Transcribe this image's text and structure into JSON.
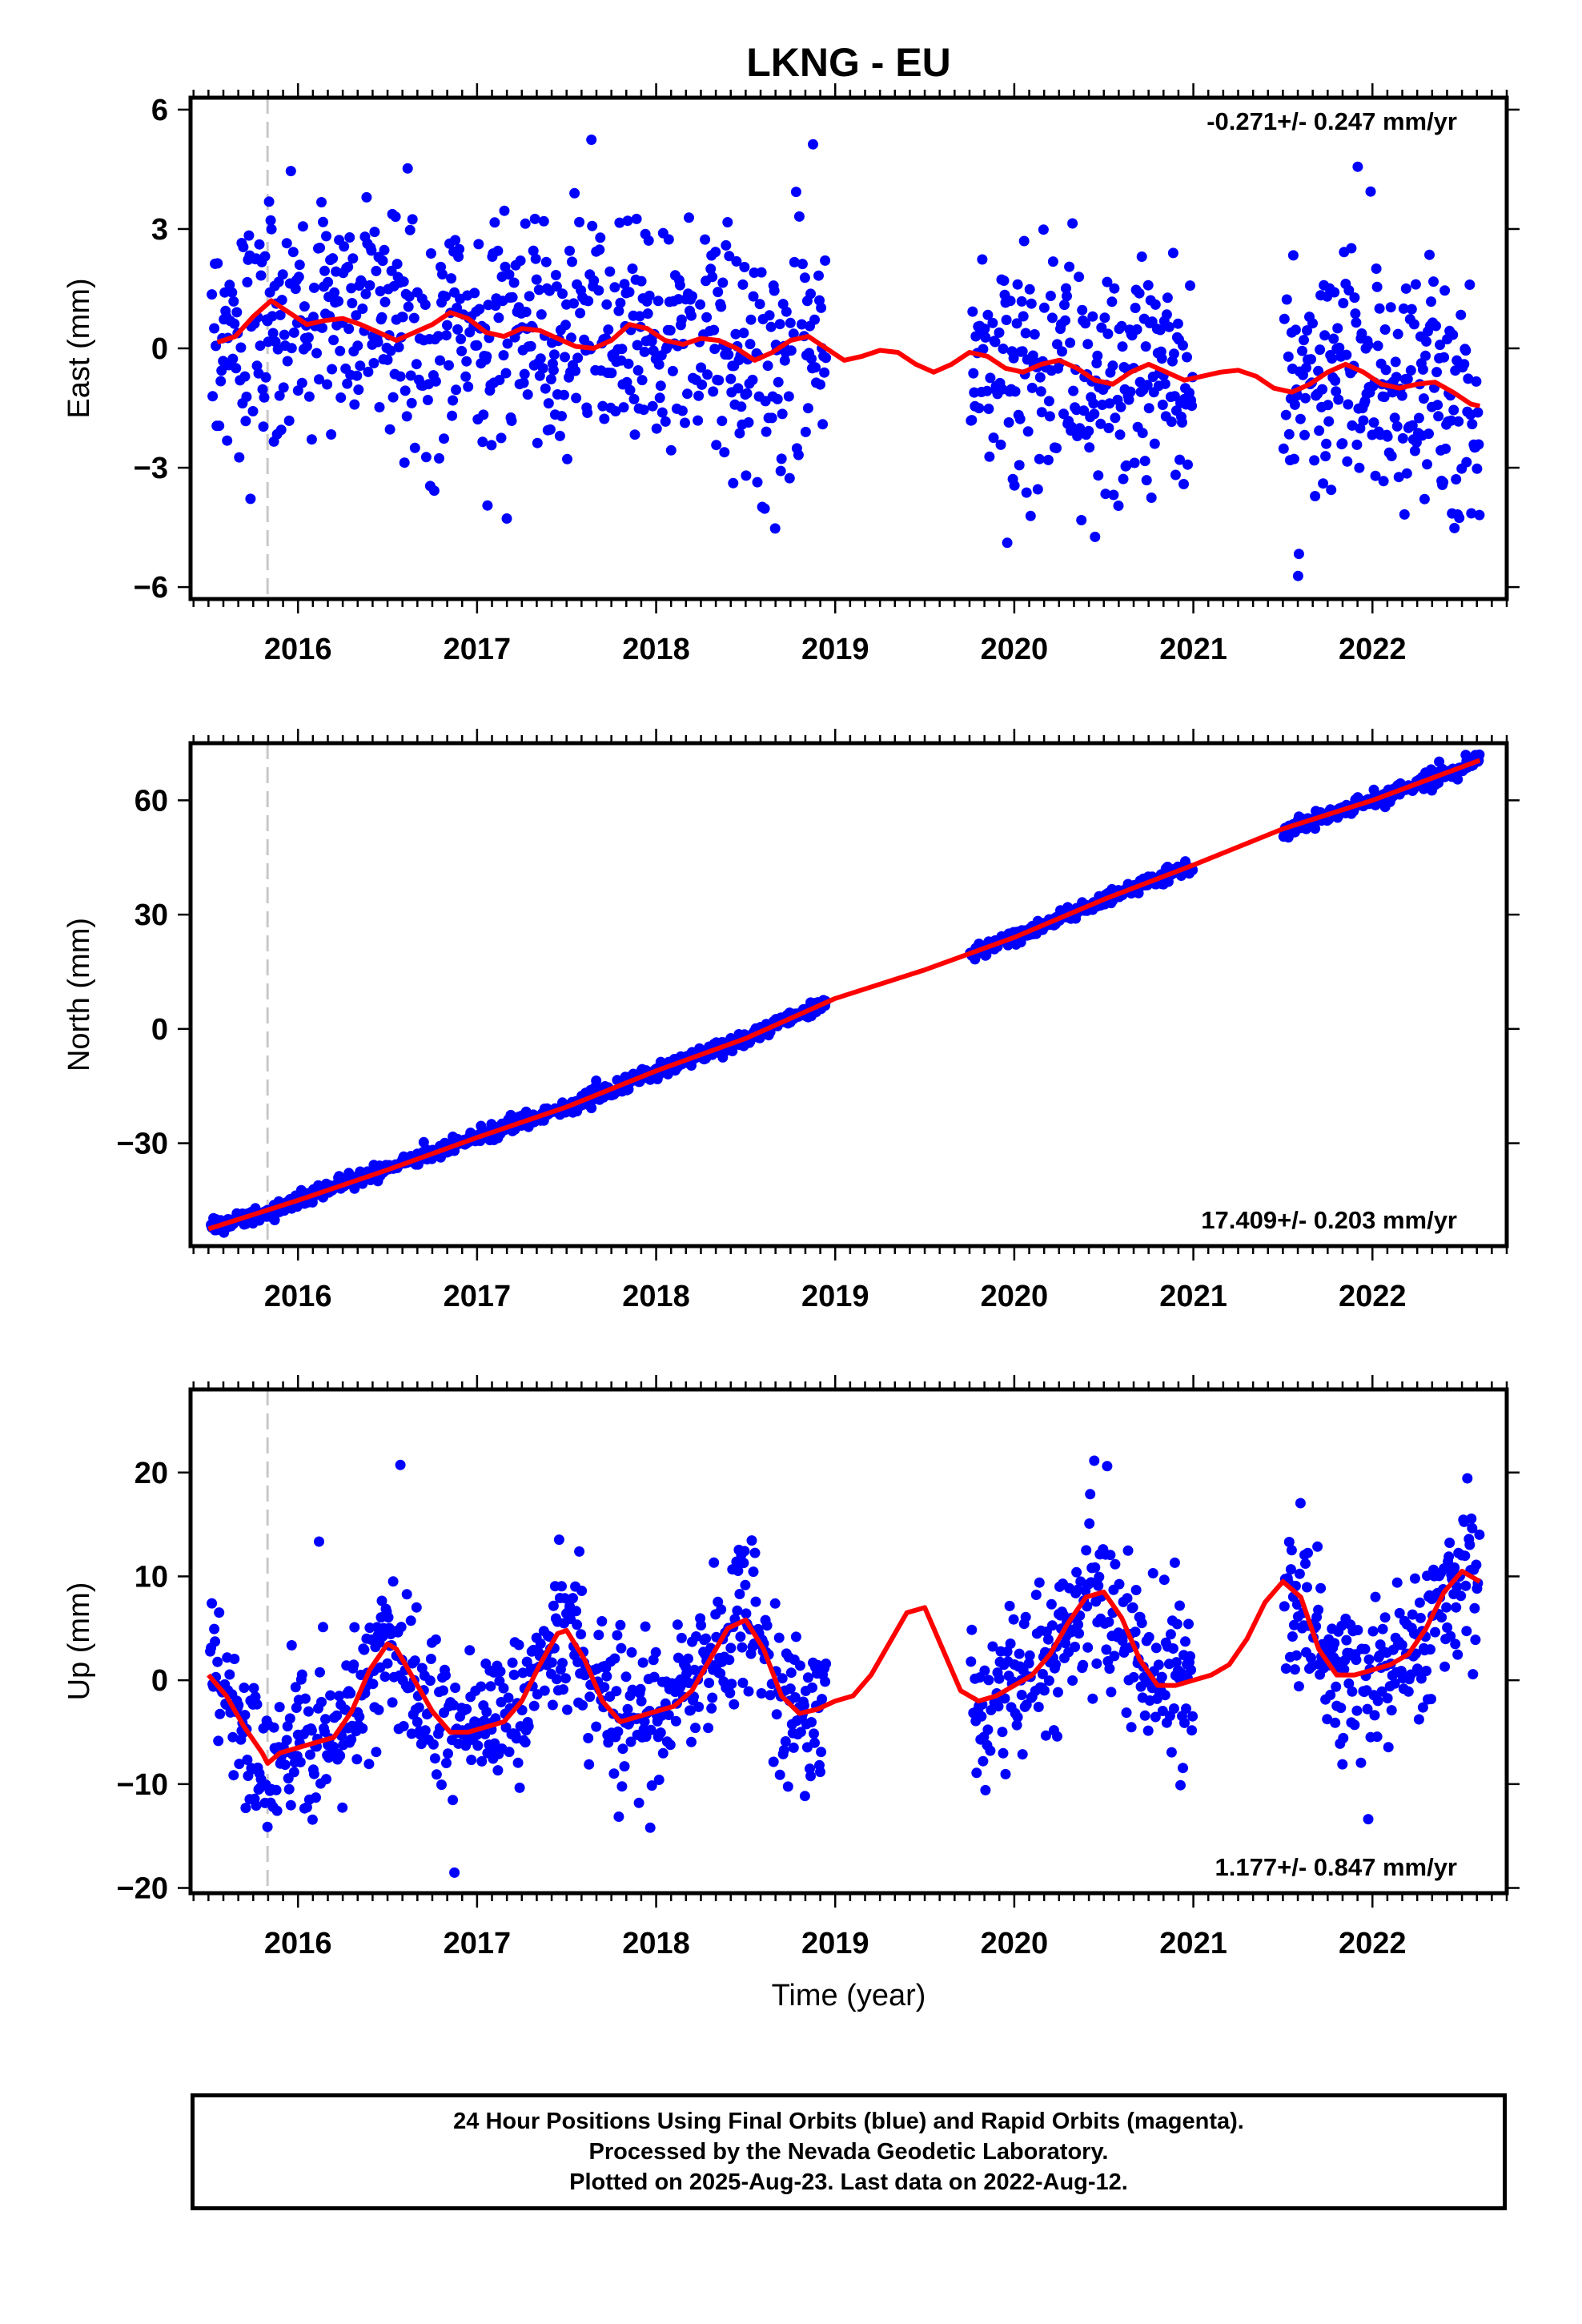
{
  "title": "LKNG - EU",
  "caption": [
    "24 Hour Positions Using Final Orbits (blue) and Rapid Orbits (magenta).",
    "Processed by the Nevada Geodetic Laboratory.",
    "Plotted on 2025-Aug-23. Last data on 2022-Aug-12."
  ],
  "colors": {
    "points": "#0000ff",
    "fit": "#ff0000",
    "antenna_change": "#c8c8c8",
    "frame": "#000000"
  },
  "chart_data": [
    {
      "type": "scatter",
      "component": "East",
      "ylabel": "East (mm)",
      "xlabel": "",
      "rate_label": "-0.271+/- 0.247 mm/yr",
      "rate_position": "top-right",
      "xlim": [
        2015.4,
        2022.75
      ],
      "ylim": [
        -6.3,
        6.3
      ],
      "xticks": [
        2016,
        2017,
        2018,
        2019,
        2020,
        2021,
        2022
      ],
      "yticks": [
        -6,
        -3,
        0,
        3,
        6
      ],
      "ytick_labels": [
        "−6",
        "−3",
        "0",
        "3",
        "6"
      ],
      "antenna_change_year": 2015.83,
      "gap": [
        2018.95,
        2019.75
      ],
      "gap2": [
        2021.0,
        2021.5
      ],
      "series": [
        {
          "kind": "points",
          "trend": [
            2015.5,
            0.6,
            2022.6,
            -1.0
          ],
          "amp": 0.4,
          "phase": 0.3,
          "scatter": 1.5,
          "outlier_rate": 0.04
        },
        {
          "kind": "fit",
          "x": [
            2015.55,
            2015.65,
            2015.75,
            2015.85,
            2015.95,
            2016.05,
            2016.15,
            2016.25,
            2016.35,
            2016.45,
            2016.55,
            2016.65,
            2016.75,
            2016.85,
            2016.95,
            2017.05,
            2017.15,
            2017.25,
            2017.35,
            2017.45,
            2017.55,
            2017.65,
            2017.75,
            2017.85,
            2017.95,
            2018.05,
            2018.15,
            2018.25,
            2018.35,
            2018.45,
            2018.55,
            2018.65,
            2018.75,
            2018.85,
            2018.95,
            2019.05,
            2019.15,
            2019.25,
            2019.35,
            2019.45,
            2019.55,
            2019.65,
            2019.75,
            2019.85,
            2019.95,
            2020.05,
            2020.15,
            2020.25,
            2020.35,
            2020.45,
            2020.55,
            2020.65,
            2020.75,
            2020.85,
            2020.95,
            2021.05,
            2021.15,
            2021.25,
            2021.35,
            2021.45,
            2021.55,
            2021.65,
            2021.75,
            2021.85,
            2021.95,
            2022.05,
            2022.15,
            2022.25,
            2022.35,
            2022.45,
            2022.55,
            2022.6
          ],
          "y": [
            0.15,
            0.3,
            0.8,
            1.2,
            0.9,
            0.6,
            0.7,
            0.75,
            0.6,
            0.4,
            0.2,
            0.4,
            0.6,
            0.9,
            0.75,
            0.4,
            0.3,
            0.5,
            0.45,
            0.25,
            0.05,
            0.0,
            0.2,
            0.6,
            0.5,
            0.2,
            0.1,
            0.25,
            0.2,
            0.0,
            -0.3,
            -0.1,
            0.2,
            0.3,
            0.0,
            -0.3,
            -0.2,
            -0.05,
            -0.1,
            -0.4,
            -0.6,
            -0.4,
            -0.1,
            -0.2,
            -0.5,
            -0.6,
            -0.4,
            -0.3,
            -0.5,
            -0.8,
            -0.9,
            -0.6,
            -0.4,
            -0.6,
            -0.8,
            -0.7,
            -0.6,
            -0.55,
            -0.7,
            -1.0,
            -1.1,
            -0.9,
            -0.6,
            -0.4,
            -0.6,
            -0.9,
            -1.0,
            -0.9,
            -0.85,
            -1.1,
            -1.4,
            -1.45
          ]
        }
      ]
    },
    {
      "type": "scatter",
      "component": "North",
      "ylabel": "North (mm)",
      "xlabel": "",
      "rate_label": "17.409+/- 0.203 mm/yr",
      "rate_position": "bottom-right",
      "xlim": [
        2015.4,
        2022.75
      ],
      "ylim": [
        -57,
        75
      ],
      "xticks": [
        2016,
        2017,
        2018,
        2019,
        2020,
        2021,
        2022
      ],
      "yticks": [
        -30,
        0,
        30,
        60
      ],
      "ytick_labels": [
        "−30",
        "0",
        "30",
        "60"
      ],
      "antenna_change_year": 2015.83,
      "gap": [
        2018.95,
        2019.75
      ],
      "gap2": [
        2021.0,
        2021.5
      ],
      "series": [
        {
          "kind": "points",
          "trend": [
            2015.5,
            -52.5,
            2022.6,
            70.5
          ],
          "amp": 0.6,
          "phase": 0.2,
          "scatter": 1.0,
          "outlier_rate": 0.0
        },
        {
          "kind": "fit",
          "x": [
            2015.5,
            2016.0,
            2016.5,
            2017.0,
            2017.5,
            2018.0,
            2018.5,
            2019.0,
            2019.5,
            2020.0,
            2020.5,
            2021.0,
            2021.5,
            2022.0,
            2022.6
          ],
          "y": [
            -52.5,
            -45.0,
            -37.0,
            -28.5,
            -20.5,
            -11.0,
            -2.5,
            8.0,
            15.5,
            24.0,
            34.0,
            43.0,
            52.5,
            60.0,
            70.5
          ]
        }
      ]
    },
    {
      "type": "scatter",
      "component": "Up",
      "ylabel": "Up (mm)",
      "xlabel": "Time (year)",
      "rate_label": "1.177+/- 0.847 mm/yr",
      "rate_position": "bottom-right",
      "xlim": [
        2015.4,
        2022.75
      ],
      "ylim": [
        -20.5,
        28
      ],
      "xticks": [
        2016,
        2017,
        2018,
        2019,
        2020,
        2021,
        2022
      ],
      "yticks": [
        -20,
        -10,
        0,
        10,
        20
      ],
      "ytick_labels": [
        "−20",
        "−10",
        "0",
        "10",
        "20"
      ],
      "antenna_change_year": 2015.83,
      "gap": [
        2018.95,
        2019.75
      ],
      "gap2": [
        2021.0,
        2021.5
      ],
      "series": [
        {
          "kind": "points",
          "trend": [
            2015.5,
            -2.0,
            2022.6,
            6.0
          ],
          "amp": 5.0,
          "phase": 0.55,
          "scatter": 3.5,
          "outlier_rate": 0.03
        },
        {
          "kind": "fit",
          "x": [
            2015.5,
            2015.6,
            2015.7,
            2015.8,
            2015.83,
            2015.9,
            2016.0,
            2016.1,
            2016.2,
            2016.3,
            2016.4,
            2016.5,
            2016.55,
            2016.65,
            2016.75,
            2016.85,
            2016.95,
            2017.05,
            2017.15,
            2017.25,
            2017.35,
            2017.45,
            2017.5,
            2017.6,
            2017.7,
            2017.8,
            2017.9,
            2018.0,
            2018.1,
            2018.2,
            2018.3,
            2018.4,
            2018.5,
            2018.6,
            2018.7,
            2018.8,
            2018.9,
            2019.0,
            2019.1,
            2019.2,
            2019.3,
            2019.4,
            2019.5,
            2019.6,
            2019.7,
            2019.8,
            2019.9,
            2020.0,
            2020.1,
            2020.2,
            2020.3,
            2020.4,
            2020.5,
            2020.6,
            2020.7,
            2020.8,
            2020.9,
            2021.0,
            2021.1,
            2021.2,
            2021.3,
            2021.4,
            2021.5,
            2021.6,
            2021.7,
            2021.8,
            2021.9,
            2022.0,
            2022.1,
            2022.2,
            2022.3,
            2022.4,
            2022.5,
            2022.6
          ],
          "y": [
            0.5,
            -1.5,
            -4.5,
            -7.0,
            -8.0,
            -7.0,
            -6.5,
            -6.0,
            -5.5,
            -3.0,
            1.0,
            3.5,
            3.0,
            0.0,
            -3.0,
            -5.0,
            -5.0,
            -4.5,
            -4.0,
            -2.0,
            1.5,
            4.5,
            4.8,
            2.0,
            -2.0,
            -4.0,
            -3.5,
            -3.0,
            -2.5,
            -1.0,
            2.0,
            5.0,
            5.8,
            3.0,
            -1.5,
            -3.2,
            -2.8,
            -2.0,
            -1.5,
            0.5,
            3.5,
            6.5,
            7.0,
            3.0,
            -1.0,
            -2.0,
            -1.5,
            -0.5,
            0.5,
            2.5,
            5.5,
            8.0,
            8.5,
            6.0,
            2.0,
            -0.5,
            -0.5,
            0.0,
            0.5,
            1.5,
            4.0,
            7.5,
            9.5,
            8.0,
            3.0,
            0.5,
            0.5,
            1.0,
            1.5,
            2.5,
            5.0,
            8.5,
            10.5,
            9.5
          ]
        }
      ]
    }
  ]
}
